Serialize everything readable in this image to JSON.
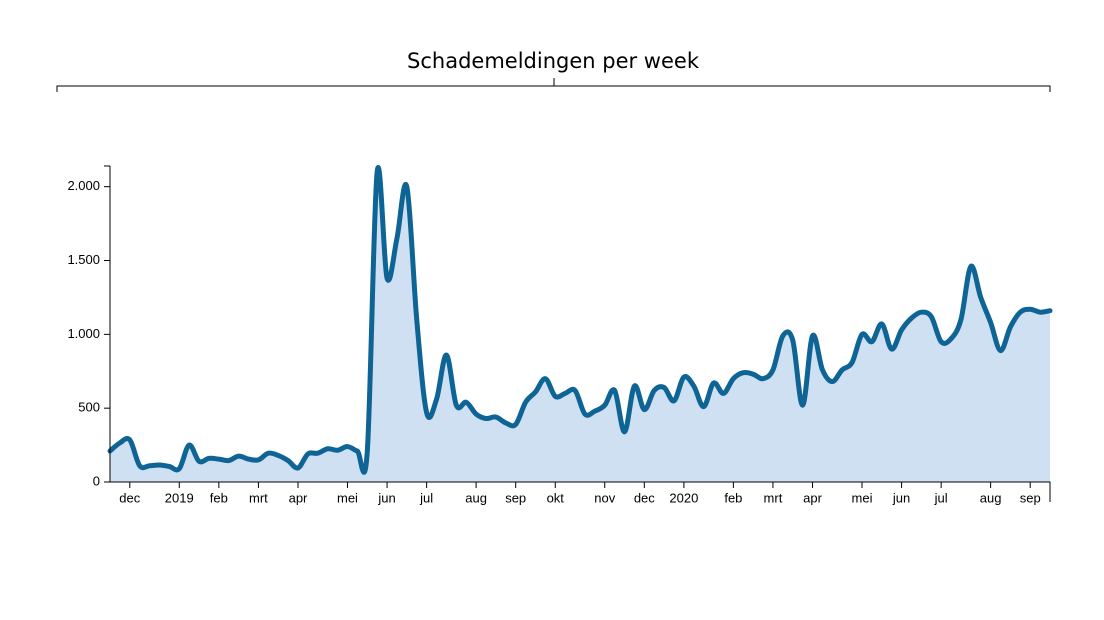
{
  "chart_data": {
    "type": "area",
    "title": "Schademeldingen per week",
    "categories": [
      null,
      null,
      "dec",
      null,
      null,
      null,
      null,
      "2019",
      null,
      null,
      null,
      "feb",
      null,
      null,
      null,
      "mrt",
      null,
      null,
      null,
      "apr",
      null,
      null,
      null,
      null,
      "mei",
      null,
      null,
      null,
      "jun",
      null,
      null,
      null,
      "jul",
      null,
      null,
      null,
      null,
      "aug",
      null,
      null,
      null,
      "sep",
      null,
      null,
      null,
      "okt",
      null,
      null,
      null,
      null,
      "nov",
      null,
      null,
      null,
      "dec",
      null,
      null,
      null,
      "2020",
      null,
      null,
      null,
      null,
      "feb",
      null,
      null,
      null,
      "mrt",
      null,
      null,
      null,
      "apr",
      null,
      null,
      null,
      null,
      "mei",
      null,
      null,
      null,
      "jun",
      null,
      null,
      null,
      "jul",
      null,
      null,
      null,
      null,
      "aug",
      null,
      null,
      null,
      "sep",
      null,
      null
    ],
    "values": [
      210,
      265,
      285,
      110,
      110,
      115,
      105,
      90,
      250,
      140,
      160,
      155,
      145,
      175,
      155,
      150,
      195,
      180,
      145,
      95,
      190,
      195,
      225,
      215,
      240,
      210,
      205,
      2100,
      1380,
      1650,
      2000,
      1100,
      470,
      560,
      860,
      520,
      540,
      460,
      430,
      440,
      400,
      390,
      540,
      610,
      700,
      580,
      600,
      620,
      460,
      480,
      520,
      620,
      340,
      650,
      490,
      620,
      640,
      550,
      710,
      650,
      510,
      670,
      600,
      700,
      740,
      730,
      700,
      760,
      990,
      960,
      520,
      990,
      760,
      680,
      760,
      810,
      1000,
      950,
      1070,
      900,
      1030,
      1110,
      1150,
      1120,
      950,
      970,
      1100,
      1460,
      1250,
      1080,
      890,
      1050,
      1150,
      1170,
      1150,
      1160
    ],
    "color": "#0e6494",
    "fill": "#cfe0f2",
    "ylim": [
      0,
      2140
    ],
    "yticks": [
      0,
      500,
      {
        "value": 1000,
        "label": "1.000"
      },
      {
        "value": 1500,
        "label": "1.500"
      },
      {
        "value": 2000,
        "label": "2.000"
      }
    ]
  }
}
